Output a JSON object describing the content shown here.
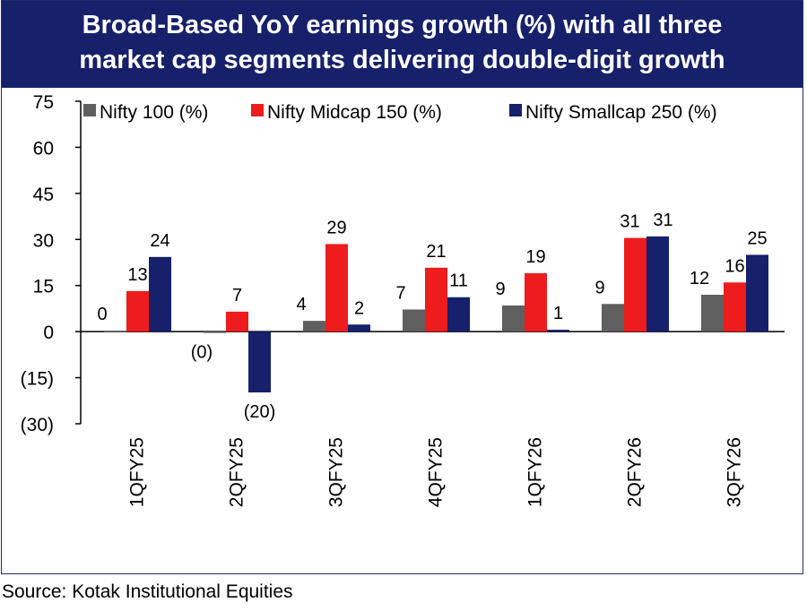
{
  "title_lines": [
    "Broad-Based YoY earnings growth (%) with all three",
    "market cap segments delivering double-digit growth"
  ],
  "source": "Source: Kotak Institutional Equities",
  "colors": {
    "title_bg": "#16206b",
    "nifty100": "#5f5f5f",
    "midcap": "#ee1c1c",
    "smallcap": "#16206b"
  },
  "chart_data": {
    "type": "bar",
    "categories": [
      "1QFY25",
      "2QFY25",
      "3QFY25",
      "4QFY25",
      "1QFY26",
      "2QFY26",
      "3QFY26"
    ],
    "series": [
      {
        "name": "Nifty 100 (%)",
        "color": "#5f5f5f",
        "values": [
          0.3,
          -0.4,
          3.5,
          7.2,
          8.5,
          9.0,
          12.0
        ],
        "labels": [
          "0",
          "(0)",
          "4",
          "7",
          "9",
          "9",
          "12"
        ]
      },
      {
        "name": "Nifty Midcap 150 (%)",
        "color": "#ee1c1c",
        "values": [
          13.2,
          6.5,
          28.5,
          20.8,
          19.0,
          30.5,
          16.0
        ],
        "labels": [
          "13",
          "7",
          "29",
          "21",
          "19",
          "31",
          "16"
        ]
      },
      {
        "name": "Nifty Smallcap 250 (%)",
        "color": "#16206b",
        "values": [
          24.3,
          -19.8,
          2.3,
          11.2,
          0.6,
          31.0,
          25.0
        ],
        "labels": [
          "24",
          "(20)",
          "2",
          "11",
          "1",
          "31",
          "25"
        ]
      }
    ],
    "yticks": [
      "75",
      "60",
      "45",
      "30",
      "15",
      "0",
      "(15)",
      "(30)"
    ],
    "ylim": [
      -30,
      75
    ],
    "legend_position": "top",
    "grid": false
  }
}
